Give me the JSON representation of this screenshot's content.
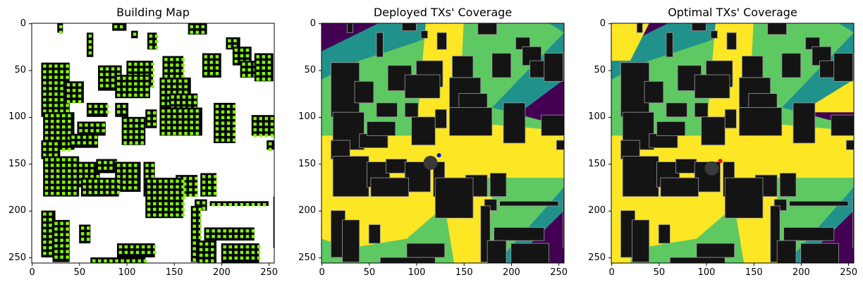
{
  "chart_data": [
    {
      "type": "heatmap",
      "title": "Building Map",
      "xlabel": "",
      "ylabel": "",
      "xlim": [
        0,
        256
      ],
      "ylim": [
        256,
        0
      ],
      "xticks": [
        "0",
        "50",
        "100",
        "150",
        "200",
        "250"
      ],
      "yticks": [
        "0",
        "50",
        "100",
        "150",
        "200",
        "250"
      ],
      "colors": {
        "background": "#ffffff",
        "building": "#000000",
        "marker": "#7cfc00"
      }
    },
    {
      "type": "heatmap",
      "title": "Deployed TXs' Coverage",
      "xlabel": "",
      "ylabel": "",
      "xlim": [
        0,
        256
      ],
      "ylim": [
        256,
        0
      ],
      "xticks": [
        "0",
        "50",
        "100",
        "150",
        "200",
        "250"
      ],
      "yticks": [
        "0",
        "50",
        "100",
        "150",
        "200",
        "250"
      ],
      "colors": {
        "low": "#440154",
        "mid_low": "#21918c",
        "mid_high": "#5ec962",
        "high": "#fde725",
        "building": "#141414",
        "tx_marker": "#0000ff"
      },
      "transmitter": {
        "x": 124,
        "y": 141
      }
    },
    {
      "type": "heatmap",
      "title": "Optimal TXs' Coverage",
      "xlabel": "",
      "ylabel": "",
      "xlim": [
        0,
        256
      ],
      "ylim": [
        256,
        0
      ],
      "xticks": [
        "0",
        "50",
        "100",
        "150",
        "200",
        "250"
      ],
      "yticks": [
        "0",
        "50",
        "100",
        "150",
        "200",
        "250"
      ],
      "colors": {
        "low": "#440154",
        "mid_low": "#21918c",
        "mid_high": "#5ec962",
        "high": "#fde725",
        "building": "#141414",
        "tx_marker": "#ff0000"
      },
      "transmitter": {
        "x": 115,
        "y": 147
      }
    }
  ]
}
